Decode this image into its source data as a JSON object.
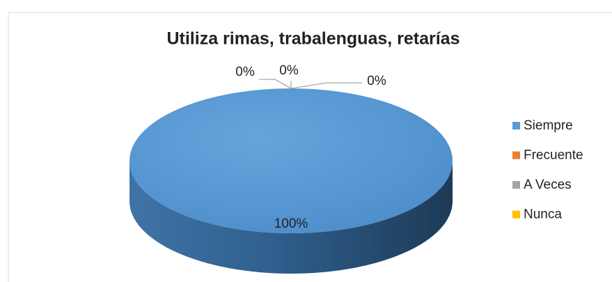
{
  "chart_data": {
    "type": "pie",
    "title": "Utiliza rimas, trabalenguas, retarías",
    "categories": [
      "Siempre",
      "Frecuente",
      "A Veces",
      "Nunca"
    ],
    "values": [
      100,
      0,
      0,
      0
    ],
    "value_labels": [
      "100%",
      "0%",
      "0%",
      "0%"
    ],
    "colors": [
      "#5b9bd5",
      "#ed7d31",
      "#a5a5a5",
      "#ffc000"
    ],
    "legend": "right"
  }
}
